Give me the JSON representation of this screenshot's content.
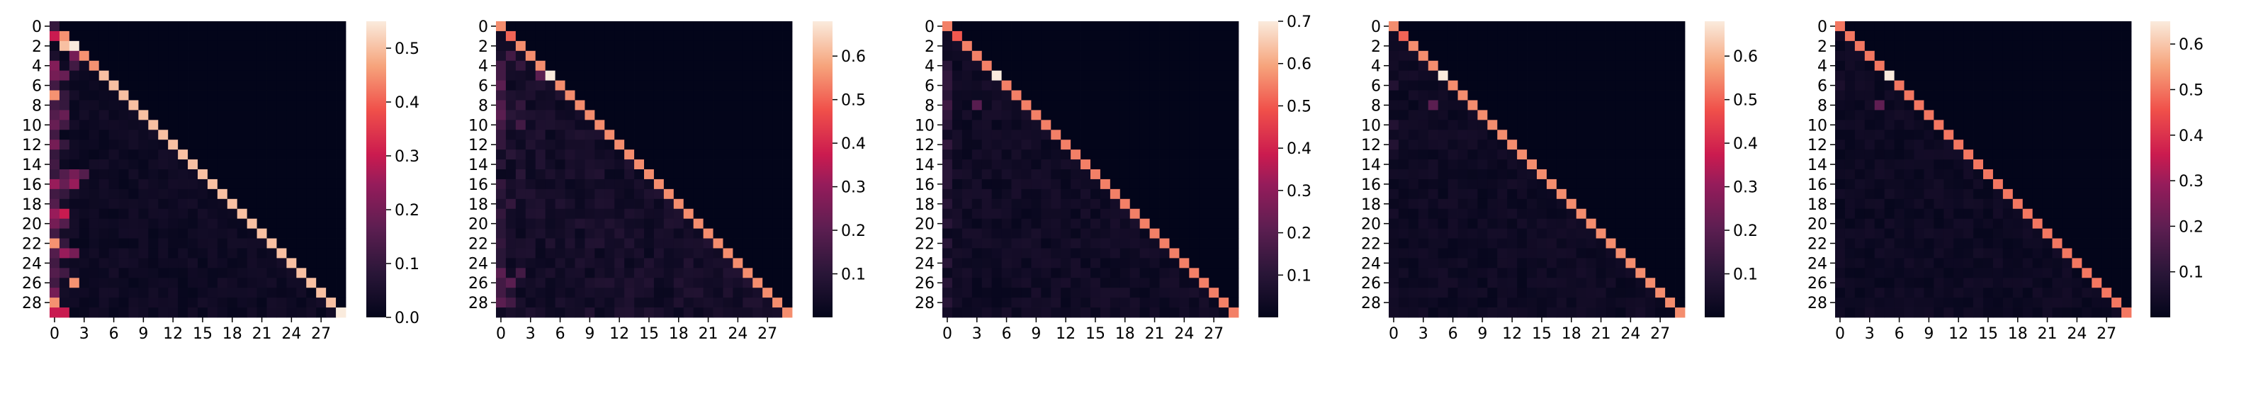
{
  "chart_data": [
    {
      "type": "heatmap",
      "title": "",
      "xlabel": "",
      "ylabel": "",
      "n": 30,
      "x_ticks": [
        "0",
        "3",
        "6",
        "9",
        "12",
        "15",
        "18",
        "21",
        "24",
        "27"
      ],
      "y_ticks": [
        "0",
        "2",
        "4",
        "6",
        "8",
        "10",
        "12",
        "14",
        "16",
        "18",
        "20",
        "22",
        "24",
        "26",
        "28"
      ],
      "colorbar": {
        "vmin": 0.0,
        "vmax": 0.55,
        "ticks": [
          "0.0",
          "0.1",
          "0.2",
          "0.3",
          "0.4",
          "0.5"
        ]
      },
      "diagonal": [
        0.1,
        0.4,
        0.55,
        0.45,
        0.45,
        0.5,
        0.5,
        0.5,
        0.5,
        0.5,
        0.5,
        0.5,
        0.5,
        0.5,
        0.5,
        0.5,
        0.5,
        0.5,
        0.5,
        0.5,
        0.5,
        0.5,
        0.5,
        0.5,
        0.5,
        0.5,
        0.5,
        0.5,
        0.5,
        0.55
      ],
      "cells": [
        [
          1,
          0,
          0.3
        ],
        [
          1,
          1,
          0.45
        ],
        [
          2,
          1,
          0.5
        ],
        [
          3,
          0,
          0.05
        ],
        [
          3,
          2,
          0.2
        ],
        [
          4,
          0,
          0.22
        ],
        [
          4,
          2,
          0.12
        ],
        [
          5,
          0,
          0.2
        ],
        [
          5,
          1,
          0.18
        ],
        [
          6,
          0,
          0.12
        ],
        [
          7,
          0,
          0.45
        ],
        [
          7,
          1,
          0.1
        ],
        [
          8,
          0,
          0.12
        ],
        [
          8,
          1,
          0.1
        ],
        [
          9,
          0,
          0.15
        ],
        [
          9,
          1,
          0.18
        ],
        [
          10,
          0,
          0.18
        ],
        [
          10,
          1,
          0.12
        ],
        [
          11,
          0,
          0.12
        ],
        [
          12,
          0,
          0.2
        ],
        [
          12,
          1,
          0.1
        ],
        [
          13,
          0,
          0.1
        ],
        [
          14,
          0,
          0.12
        ],
        [
          15,
          0,
          0.1
        ],
        [
          15,
          1,
          0.15
        ],
        [
          15,
          2,
          0.2
        ],
        [
          15,
          3,
          0.15
        ],
        [
          16,
          0,
          0.25
        ],
        [
          16,
          1,
          0.18
        ],
        [
          16,
          2,
          0.25
        ],
        [
          17,
          0,
          0.12
        ],
        [
          17,
          1,
          0.1
        ],
        [
          18,
          0,
          0.15
        ],
        [
          19,
          0,
          0.25
        ],
        [
          19,
          1,
          0.3
        ],
        [
          20,
          0,
          0.2
        ],
        [
          20,
          1,
          0.15
        ],
        [
          21,
          0,
          0.12
        ],
        [
          22,
          0,
          0.45
        ],
        [
          22,
          1,
          0.1
        ],
        [
          23,
          0,
          0.15
        ],
        [
          23,
          1,
          0.25
        ],
        [
          23,
          2,
          0.2
        ],
        [
          24,
          0,
          0.12
        ],
        [
          25,
          0,
          0.15
        ],
        [
          25,
          1,
          0.12
        ],
        [
          26,
          0,
          0.12
        ],
        [
          26,
          2,
          0.45
        ],
        [
          27,
          0,
          0.2
        ],
        [
          28,
          0,
          0.45
        ],
        [
          29,
          0,
          0.3
        ],
        [
          29,
          1,
          0.3
        ]
      ],
      "background": 0.02
    },
    {
      "type": "heatmap",
      "title": "",
      "xlabel": "",
      "ylabel": "",
      "n": 30,
      "x_ticks": [
        "0",
        "3",
        "6",
        "9",
        "12",
        "15",
        "18",
        "21",
        "24",
        "27"
      ],
      "y_ticks": [
        "0",
        "2",
        "4",
        "6",
        "8",
        "10",
        "12",
        "14",
        "16",
        "18",
        "20",
        "22",
        "24",
        "26",
        "28"
      ],
      "colorbar": {
        "vmin": 0.0,
        "vmax": 0.68,
        "ticks": [
          "0.1",
          "0.2",
          "0.3",
          "0.4",
          "0.5",
          "0.6"
        ]
      },
      "diagonal": [
        0.55,
        0.5,
        0.55,
        0.55,
        0.55,
        0.68,
        0.55,
        0.55,
        0.55,
        0.55,
        0.55,
        0.55,
        0.55,
        0.55,
        0.55,
        0.55,
        0.55,
        0.55,
        0.55,
        0.55,
        0.55,
        0.55,
        0.55,
        0.55,
        0.55,
        0.55,
        0.55,
        0.55,
        0.55,
        0.55
      ],
      "cells": [
        [
          3,
          1,
          0.15
        ],
        [
          4,
          0,
          0.15
        ],
        [
          4,
          2,
          0.12
        ],
        [
          5,
          0,
          0.15
        ],
        [
          5,
          4,
          0.2
        ],
        [
          6,
          0,
          0.2
        ],
        [
          7,
          0,
          0.12
        ],
        [
          8,
          0,
          0.18
        ],
        [
          8,
          2,
          0.12
        ],
        [
          9,
          0,
          0.2
        ],
        [
          9,
          1,
          0.1
        ],
        [
          10,
          0,
          0.15
        ],
        [
          10,
          2,
          0.15
        ],
        [
          11,
          0,
          0.12
        ],
        [
          12,
          0,
          0.12
        ],
        [
          13,
          1,
          0.1
        ],
        [
          14,
          0,
          0.1
        ],
        [
          15,
          2,
          0.1
        ],
        [
          16,
          0,
          0.12
        ],
        [
          17,
          0,
          0.1
        ],
        [
          18,
          1,
          0.12
        ],
        [
          19,
          0,
          0.12
        ],
        [
          20,
          0,
          0.1
        ],
        [
          21,
          0,
          0.1
        ],
        [
          22,
          0,
          0.12
        ],
        [
          23,
          0,
          0.1
        ],
        [
          24,
          0,
          0.1
        ],
        [
          25,
          0,
          0.2
        ],
        [
          25,
          2,
          0.15
        ],
        [
          26,
          0,
          0.15
        ],
        [
          26,
          1,
          0.2
        ],
        [
          27,
          0,
          0.15
        ],
        [
          28,
          0,
          0.2
        ],
        [
          28,
          1,
          0.15
        ]
      ],
      "background": 0.04
    },
    {
      "type": "heatmap",
      "title": "",
      "xlabel": "",
      "ylabel": "",
      "n": 30,
      "x_ticks": [
        "0",
        "3",
        "6",
        "9",
        "12",
        "15",
        "18",
        "21",
        "24",
        "27"
      ],
      "y_ticks": [
        "0",
        "2",
        "4",
        "6",
        "8",
        "10",
        "12",
        "14",
        "16",
        "18",
        "20",
        "22",
        "24",
        "26",
        "28"
      ],
      "colorbar": {
        "vmin": 0.0,
        "vmax": 0.7,
        "ticks": [
          "0.1",
          "0.2",
          "0.3",
          "0.4",
          "0.5",
          "0.6",
          "0.7"
        ]
      },
      "diagonal": [
        0.55,
        0.5,
        0.55,
        0.55,
        0.55,
        0.7,
        0.55,
        0.55,
        0.55,
        0.55,
        0.55,
        0.55,
        0.55,
        0.55,
        0.55,
        0.55,
        0.55,
        0.55,
        0.55,
        0.55,
        0.55,
        0.55,
        0.55,
        0.55,
        0.55,
        0.55,
        0.55,
        0.55,
        0.55,
        0.55
      ],
      "cells": [
        [
          4,
          0,
          0.1
        ],
        [
          5,
          0,
          0.12
        ],
        [
          6,
          0,
          0.12
        ],
        [
          7,
          0,
          0.1
        ],
        [
          8,
          0,
          0.15
        ],
        [
          8,
          3,
          0.2
        ],
        [
          9,
          0,
          0.12
        ],
        [
          10,
          0,
          0.1
        ],
        [
          12,
          0,
          0.12
        ],
        [
          14,
          0,
          0.1
        ],
        [
          15,
          0,
          0.1
        ],
        [
          16,
          0,
          0.1
        ],
        [
          18,
          0,
          0.1
        ],
        [
          20,
          0,
          0.1
        ],
        [
          22,
          0,
          0.1
        ],
        [
          24,
          0,
          0.1
        ],
        [
          26,
          0,
          0.1
        ],
        [
          28,
          0,
          0.1
        ]
      ],
      "background": 0.03
    },
    {
      "type": "heatmap",
      "title": "",
      "xlabel": "",
      "ylabel": "",
      "n": 30,
      "x_ticks": [
        "0",
        "3",
        "6",
        "9",
        "12",
        "15",
        "18",
        "21",
        "24",
        "27"
      ],
      "y_ticks": [
        "0",
        "2",
        "4",
        "6",
        "8",
        "10",
        "12",
        "14",
        "16",
        "18",
        "20",
        "22",
        "24",
        "26",
        "28"
      ],
      "colorbar": {
        "vmin": 0.0,
        "vmax": 0.68,
        "ticks": [
          "0.1",
          "0.2",
          "0.3",
          "0.4",
          "0.5",
          "0.6"
        ]
      },
      "diagonal": [
        0.55,
        0.5,
        0.55,
        0.55,
        0.55,
        0.68,
        0.55,
        0.55,
        0.55,
        0.55,
        0.55,
        0.55,
        0.55,
        0.55,
        0.55,
        0.55,
        0.55,
        0.55,
        0.55,
        0.55,
        0.55,
        0.55,
        0.55,
        0.55,
        0.55,
        0.55,
        0.55,
        0.55,
        0.55,
        0.55
      ],
      "cells": [
        [
          8,
          4,
          0.2
        ],
        [
          6,
          0,
          0.08
        ],
        [
          10,
          0,
          0.08
        ],
        [
          12,
          0,
          0.08
        ]
      ],
      "background": 0.025
    },
    {
      "type": "heatmap",
      "title": "",
      "xlabel": "",
      "ylabel": "",
      "n": 30,
      "x_ticks": [
        "0",
        "3",
        "6",
        "9",
        "12",
        "15",
        "18",
        "21",
        "24",
        "27"
      ],
      "y_ticks": [
        "0",
        "2",
        "4",
        "6",
        "8",
        "10",
        "12",
        "14",
        "16",
        "18",
        "20",
        "22",
        "24",
        "26",
        "28"
      ],
      "colorbar": {
        "vmin": 0.0,
        "vmax": 0.65,
        "ticks": [
          "0.1",
          "0.2",
          "0.3",
          "0.4",
          "0.5",
          "0.6"
        ]
      },
      "diagonal": [
        0.5,
        0.5,
        0.5,
        0.5,
        0.5,
        0.65,
        0.5,
        0.5,
        0.5,
        0.5,
        0.5,
        0.5,
        0.5,
        0.5,
        0.5,
        0.5,
        0.5,
        0.5,
        0.5,
        0.5,
        0.5,
        0.5,
        0.5,
        0.5,
        0.5,
        0.5,
        0.5,
        0.5,
        0.5,
        0.5
      ],
      "cells": [
        [
          8,
          4,
          0.2
        ],
        [
          6,
          0,
          0.06
        ]
      ],
      "background": 0.022
    }
  ]
}
